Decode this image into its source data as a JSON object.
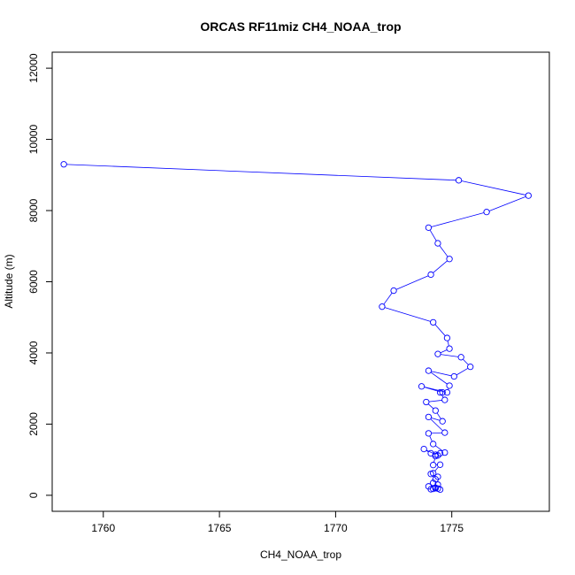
{
  "chart_data": {
    "type": "line",
    "title": "ORCAS RF11miz CH4_NOAA_trop",
    "xlabel": "CH4_NOAA_trop",
    "ylabel": "Altitude (m)",
    "xlim": [
      1757.8,
      1779.2
    ],
    "ylim": [
      -450,
      12450
    ],
    "xticks": [
      1760,
      1765,
      1770,
      1775
    ],
    "yticks": [
      0,
      2000,
      4000,
      6000,
      8000,
      10000,
      12000
    ],
    "grid": false,
    "legend": "none",
    "color": "#0000ff",
    "marker": "open-circle",
    "series": [
      {
        "x": [
          1758.3,
          1775.3,
          1778.3,
          1776.5,
          1774.0,
          1774.4,
          1774.9,
          1774.1,
          1772.5,
          1772.0,
          1774.2,
          1774.8,
          1774.9,
          1774.4,
          1775.4,
          1775.8,
          1775.1,
          1774.0,
          1774.9,
          1774.8,
          1773.7,
          1774.6,
          1774.5,
          1774.7,
          1773.9,
          1774.3,
          1774.6,
          1774.0,
          1774.7,
          1774.0,
          1774.2,
          1774.7,
          1774.5,
          1774.3,
          1774.4,
          1773.8,
          1774.1,
          1774.3,
          1774.2,
          1774.5,
          1774.2,
          1774.4,
          1774.1,
          1774.3,
          1774.2,
          1774.0,
          1774.4,
          1774.3,
          1774.2,
          1774.5,
          1774.1,
          1774.3,
          1774.4
        ],
        "y": [
          9300,
          8850,
          8420,
          7960,
          7520,
          7080,
          6640,
          6200,
          5750,
          5300,
          4860,
          4420,
          4120,
          3970,
          3880,
          3610,
          3340,
          3500,
          3080,
          2890,
          3060,
          2890,
          2890,
          2680,
          2620,
          2380,
          2080,
          2200,
          1760,
          1740,
          1440,
          1200,
          1180,
          1140,
          1120,
          1300,
          1180,
          1100,
          850,
          860,
          620,
          520,
          600,
          450,
          350,
          250,
          300,
          200,
          180,
          160,
          170,
          210,
          190
        ]
      }
    ]
  }
}
